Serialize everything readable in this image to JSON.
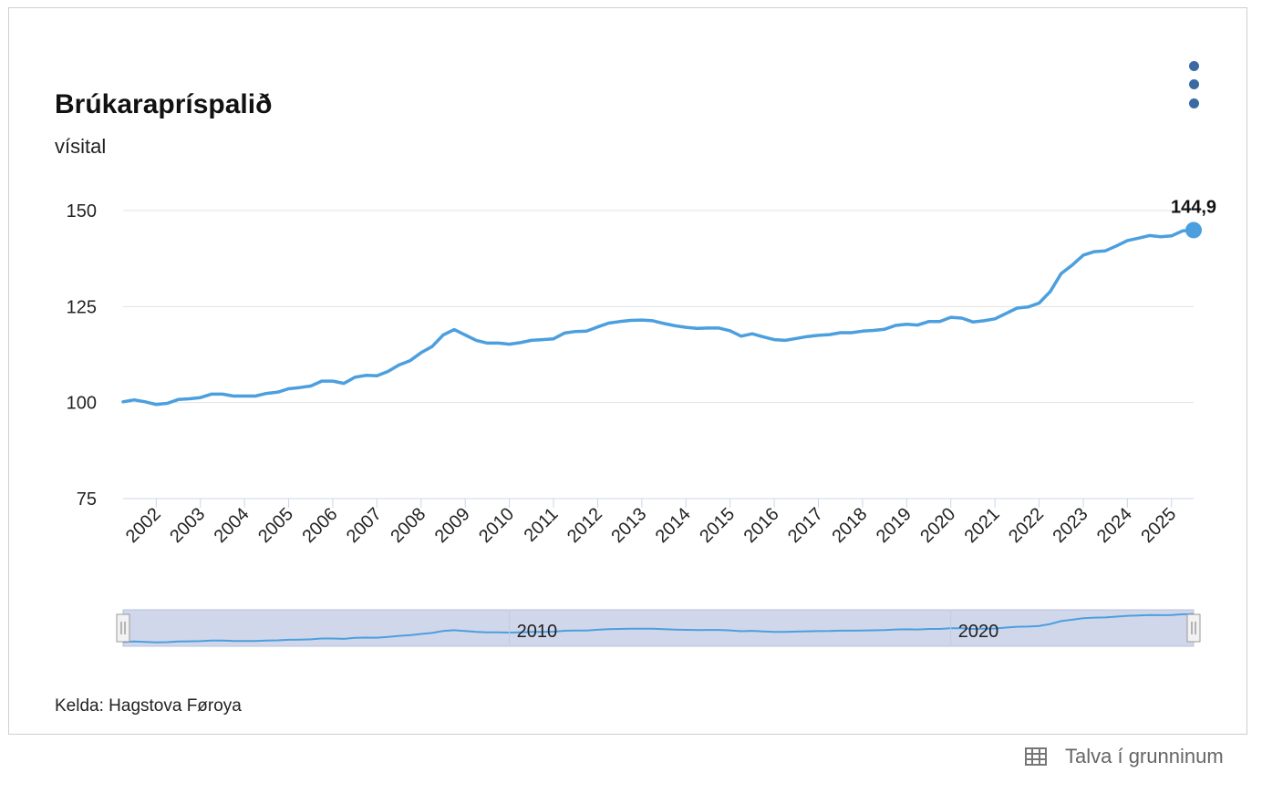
{
  "title": "Brúkarapríspalið",
  "subtitle": "vísital",
  "source": "Kelda: Hagstova Føroya",
  "table_link": {
    "label": "Talva í grunninum",
    "icon": "table-icon"
  },
  "menu_icon": "more-vertical-icon",
  "colors": {
    "line": "#4c9fde",
    "grid": "#e3e3e3",
    "navigator_fill": "#d0d7ea",
    "menu": "#3b6aa3"
  },
  "navigator": {
    "labels": [
      "2010",
      "2020"
    ]
  },
  "chart_data": {
    "type": "line",
    "title": "Brúkarapríspalið",
    "ylabel": "vísital",
    "xlabel": "",
    "ylim": [
      75,
      150
    ],
    "yticks": [
      75,
      100,
      125,
      150
    ],
    "xticks": [
      "2002",
      "2003",
      "2004",
      "2005",
      "2006",
      "2007",
      "2008",
      "2009",
      "2010",
      "2011",
      "2012",
      "2013",
      "2014",
      "2015",
      "2016",
      "2017",
      "2018",
      "2019",
      "2020",
      "2021",
      "2022",
      "2023",
      "2024",
      "2025"
    ],
    "grid": true,
    "last_point_label": "144,9",
    "series": [
      {
        "x": [
          2001.25,
          2001.5,
          2001.75,
          2002.0,
          2002.25,
          2002.5,
          2002.75,
          2003.0,
          2003.25,
          2003.5,
          2003.75,
          2004.0,
          2004.25,
          2004.5,
          2004.75,
          2005.0,
          2005.25,
          2005.5,
          2005.75,
          2006.0,
          2006.25,
          2006.5,
          2006.75,
          2007.0,
          2007.25,
          2007.5,
          2007.75,
          2008.0,
          2008.25,
          2008.5,
          2008.75,
          2009.0,
          2009.25,
          2009.5,
          2009.75,
          2010.0,
          2010.25,
          2010.5,
          2010.75,
          2011.0,
          2011.25,
          2011.5,
          2011.75,
          2012.0,
          2012.25,
          2012.5,
          2012.75,
          2013.0,
          2013.25,
          2013.5,
          2013.75,
          2014.0,
          2014.25,
          2014.5,
          2014.75,
          2015.0,
          2015.25,
          2015.5,
          2015.75,
          2016.0,
          2016.25,
          2016.5,
          2016.75,
          2017.0,
          2017.25,
          2017.5,
          2017.75,
          2018.0,
          2018.25,
          2018.5,
          2018.75,
          2019.0,
          2019.25,
          2019.5,
          2019.75,
          2020.0,
          2020.25,
          2020.5,
          2020.75,
          2021.0,
          2021.25,
          2021.5,
          2021.75,
          2022.0,
          2022.25,
          2022.5,
          2022.75,
          2023.0,
          2023.25,
          2023.5,
          2023.75,
          2024.0,
          2024.25,
          2024.5,
          2024.75,
          2025.0,
          2025.25,
          2025.5
        ],
        "values": [
          100.2,
          100.7,
          100.2,
          99.5,
          99.8,
          100.8,
          101.0,
          101.3,
          102.2,
          102.2,
          101.7,
          101.7,
          101.7,
          102.4,
          102.7,
          103.6,
          103.9,
          104.3,
          105.6,
          105.6,
          105.0,
          106.6,
          107.1,
          107.0,
          108.1,
          109.8,
          110.9,
          113.0,
          114.6,
          117.6,
          119.0,
          117.6,
          116.2,
          115.5,
          115.5,
          115.2,
          115.6,
          116.2,
          116.4,
          116.6,
          118.1,
          118.5,
          118.6,
          119.7,
          120.7,
          121.1,
          121.4,
          121.5,
          121.3,
          120.6,
          120.0,
          119.6,
          119.3,
          119.4,
          119.4,
          118.7,
          117.3,
          117.9,
          117.1,
          116.4,
          116.2,
          116.7,
          117.2,
          117.5,
          117.7,
          118.2,
          118.2,
          118.6,
          118.8,
          119.1,
          120.1,
          120.4,
          120.2,
          121.1,
          121.1,
          122.2,
          122.0,
          121.0,
          121.3,
          121.8,
          123.2,
          124.6,
          124.9,
          125.9,
          128.9,
          133.6,
          135.8,
          138.4,
          139.3,
          139.5,
          140.8,
          142.2,
          142.8,
          143.5,
          143.2,
          143.4,
          144.7,
          144.9
        ]
      }
    ]
  }
}
